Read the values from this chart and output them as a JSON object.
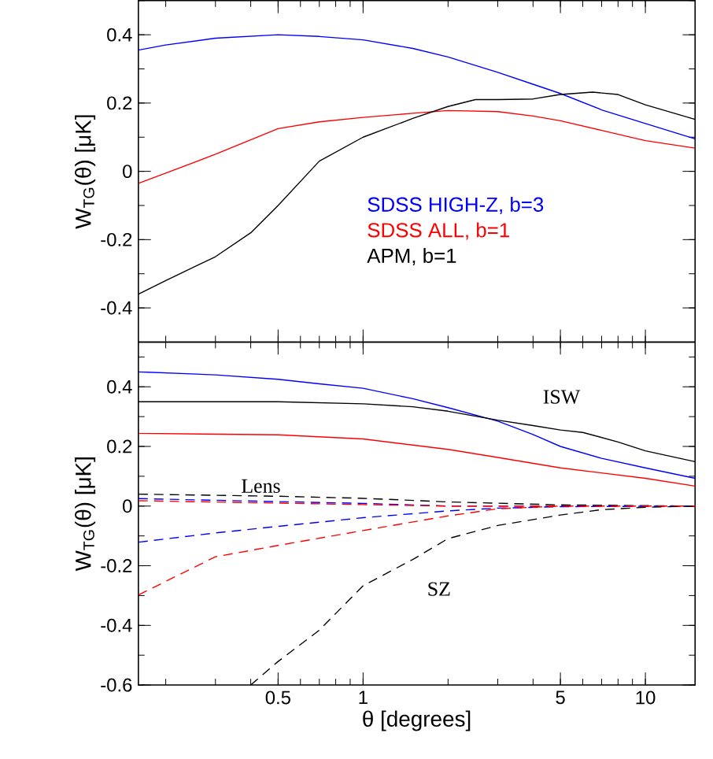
{
  "chart_data": [
    {
      "type": "line",
      "xlim": [
        0.16,
        15
      ],
      "ylim": [
        -0.5,
        0.5
      ],
      "xticks": [
        0.5,
        1,
        5,
        10
      ],
      "yticks": [
        -0.4,
        -0.2,
        0,
        0.2,
        0.4
      ],
      "log": "x",
      "tick_labels": "y",
      "ylabel": "W$_{TG}$(θ) [μK]",
      "line_style": "solid",
      "series": [
        {
          "name": "SDSS HIGH-Z, b=3",
          "color": "#0000ff",
          "x": [
            0.16,
            0.2,
            0.3,
            0.5,
            0.7,
            1,
            1.5,
            2,
            3,
            4,
            5,
            7,
            10,
            15
          ],
          "values": [
            0.355,
            0.37,
            0.39,
            0.4,
            0.395,
            0.385,
            0.36,
            0.335,
            0.29,
            0.255,
            0.228,
            0.18,
            0.14,
            0.095
          ]
        },
        {
          "name": "SDSS ALL, b=1",
          "color": "#ff0000",
          "x": [
            0.16,
            0.2,
            0.3,
            0.5,
            0.7,
            1,
            1.5,
            2,
            3,
            4,
            5,
            7,
            10,
            15
          ],
          "values": [
            -0.035,
            -0.005,
            0.05,
            0.125,
            0.145,
            0.158,
            0.17,
            0.178,
            0.175,
            0.162,
            0.148,
            0.12,
            0.09,
            0.068
          ]
        },
        {
          "name": "APM, b=1",
          "color": "#000000",
          "x": [
            0.16,
            0.2,
            0.3,
            0.4,
            0.5,
            0.7,
            1,
            1.5,
            2,
            2.5,
            3,
            4,
            5,
            6.5,
            8,
            10,
            15
          ],
          "values": [
            -0.36,
            -0.32,
            -0.25,
            -0.18,
            -0.1,
            0.03,
            0.1,
            0.155,
            0.19,
            0.21,
            0.21,
            0.212,
            0.225,
            0.232,
            0.225,
            0.195,
            0.152
          ]
        }
      ]
    },
    {
      "type": "line",
      "xlim": [
        0.16,
        15
      ],
      "ylim": [
        -0.6,
        0.55
      ],
      "xticks": [
        0.5,
        1,
        5,
        10
      ],
      "yticks": [
        -0.6,
        -0.4,
        -0.2,
        0,
        0.2,
        0.4
      ],
      "log": "x",
      "xlabel": "θ [degrees]",
      "ylabel": "W$_{TG}$(θ) [μK]",
      "annotations": [
        "ISW",
        "Lens",
        "SZ"
      ],
      "series": [
        {
          "color": "#0000ff",
          "line_style": "solid",
          "x": [
            0.16,
            0.3,
            0.5,
            0.7,
            1,
            1.5,
            2,
            3,
            4,
            5,
            7,
            10,
            15
          ],
          "values": [
            0.45,
            0.44,
            0.425,
            0.41,
            0.395,
            0.36,
            0.33,
            0.285,
            0.24,
            0.2,
            0.16,
            0.128,
            0.093
          ]
        },
        {
          "color": "#000000",
          "line_style": "solid",
          "x": [
            0.16,
            0.5,
            1,
            1.5,
            2,
            3,
            4,
            5,
            6,
            8,
            10,
            15
          ],
          "values": [
            0.35,
            0.35,
            0.343,
            0.333,
            0.318,
            0.288,
            0.27,
            0.255,
            0.247,
            0.215,
            0.185,
            0.149
          ]
        },
        {
          "color": "#ff0000",
          "line_style": "solid",
          "x": [
            0.16,
            0.5,
            1,
            2,
            3,
            5,
            10,
            15
          ],
          "values": [
            0.244,
            0.239,
            0.225,
            0.19,
            0.163,
            0.128,
            0.093,
            0.067
          ]
        },
        {
          "color": "#000000",
          "line_style": "dashed",
          "x": [
            0.16,
            0.5,
            1,
            2,
            5,
            15
          ],
          "values": [
            0.04,
            0.033,
            0.026,
            0.014,
            0.004,
            0
          ]
        },
        {
          "color": "#0000ff",
          "line_style": "dashed",
          "x": [
            0.16,
            0.5,
            1,
            2,
            5,
            15
          ],
          "values": [
            0.025,
            0.015,
            0.009,
            0,
            0,
            0
          ]
        },
        {
          "color": "#ff0000",
          "line_style": "dashed",
          "x": [
            0.16,
            0.5,
            1,
            2,
            5,
            15
          ],
          "values": [
            0.018,
            0.01,
            0.005,
            0,
            0,
            0
          ]
        },
        {
          "color": "#0000ff",
          "line_style": "dashed",
          "x": [
            0.16,
            0.3,
            0.5,
            1,
            2,
            3,
            5,
            15
          ],
          "values": [
            -0.121,
            -0.09,
            -0.068,
            -0.039,
            -0.016,
            -0.007,
            -0.002,
            0
          ]
        },
        {
          "color": "#ff0000",
          "line_style": "dashed",
          "x": [
            0.16,
            0.3,
            0.5,
            1,
            2,
            3,
            5,
            15
          ],
          "values": [
            -0.298,
            -0.17,
            -0.132,
            -0.082,
            -0.033,
            -0.009,
            0,
            0
          ]
        },
        {
          "color": "#000000",
          "line_style": "dashed",
          "x": [
            0.4,
            0.5,
            0.7,
            1,
            1.5,
            2,
            3,
            5,
            7,
            10,
            15
          ],
          "values": [
            -0.6,
            -0.521,
            -0.416,
            -0.267,
            -0.179,
            -0.109,
            -0.065,
            -0.03,
            -0.012,
            -0.004,
            0
          ]
        }
      ]
    }
  ]
}
